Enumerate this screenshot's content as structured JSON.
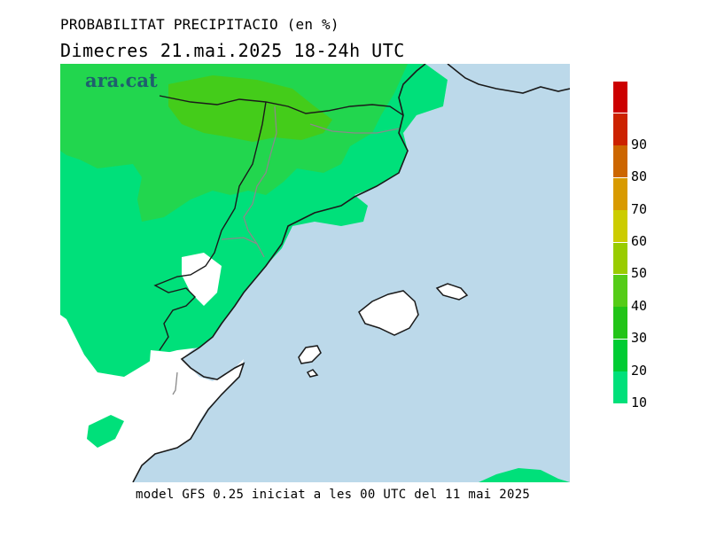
{
  "header": {
    "title": "PROBABILITAT PRECIPITACIO (en %)",
    "subtitle": "Dimecres  21.mai.2025 18-24h UTC"
  },
  "brand": "ara.cat",
  "footer": "model GFS 0.25 iniciat a les 00 UTC del 11 mai 2025",
  "legend": {
    "levels": [
      {
        "label": "10",
        "color": "#00e07a"
      },
      {
        "label": "20",
        "color": "#00cc33"
      },
      {
        "label": "30",
        "color": "#22c418"
      },
      {
        "label": "40",
        "color": "#55cc18"
      },
      {
        "label": "50",
        "color": "#99cc00"
      },
      {
        "label": "60",
        "color": "#cccc00"
      },
      {
        "label": "70",
        "color": "#d89a00"
      },
      {
        "label": "80",
        "color": "#cc6600"
      },
      {
        "label": "90",
        "color": "#cc2200"
      },
      {
        "label": "",
        "color": "#cc0000"
      }
    ]
  },
  "colors": {
    "sea": "#bcd9ea",
    "land": "#ffffff",
    "prob_10": "#00e07a",
    "prob_20": "#22d64e",
    "prob_30": "#44cc1a"
  }
}
